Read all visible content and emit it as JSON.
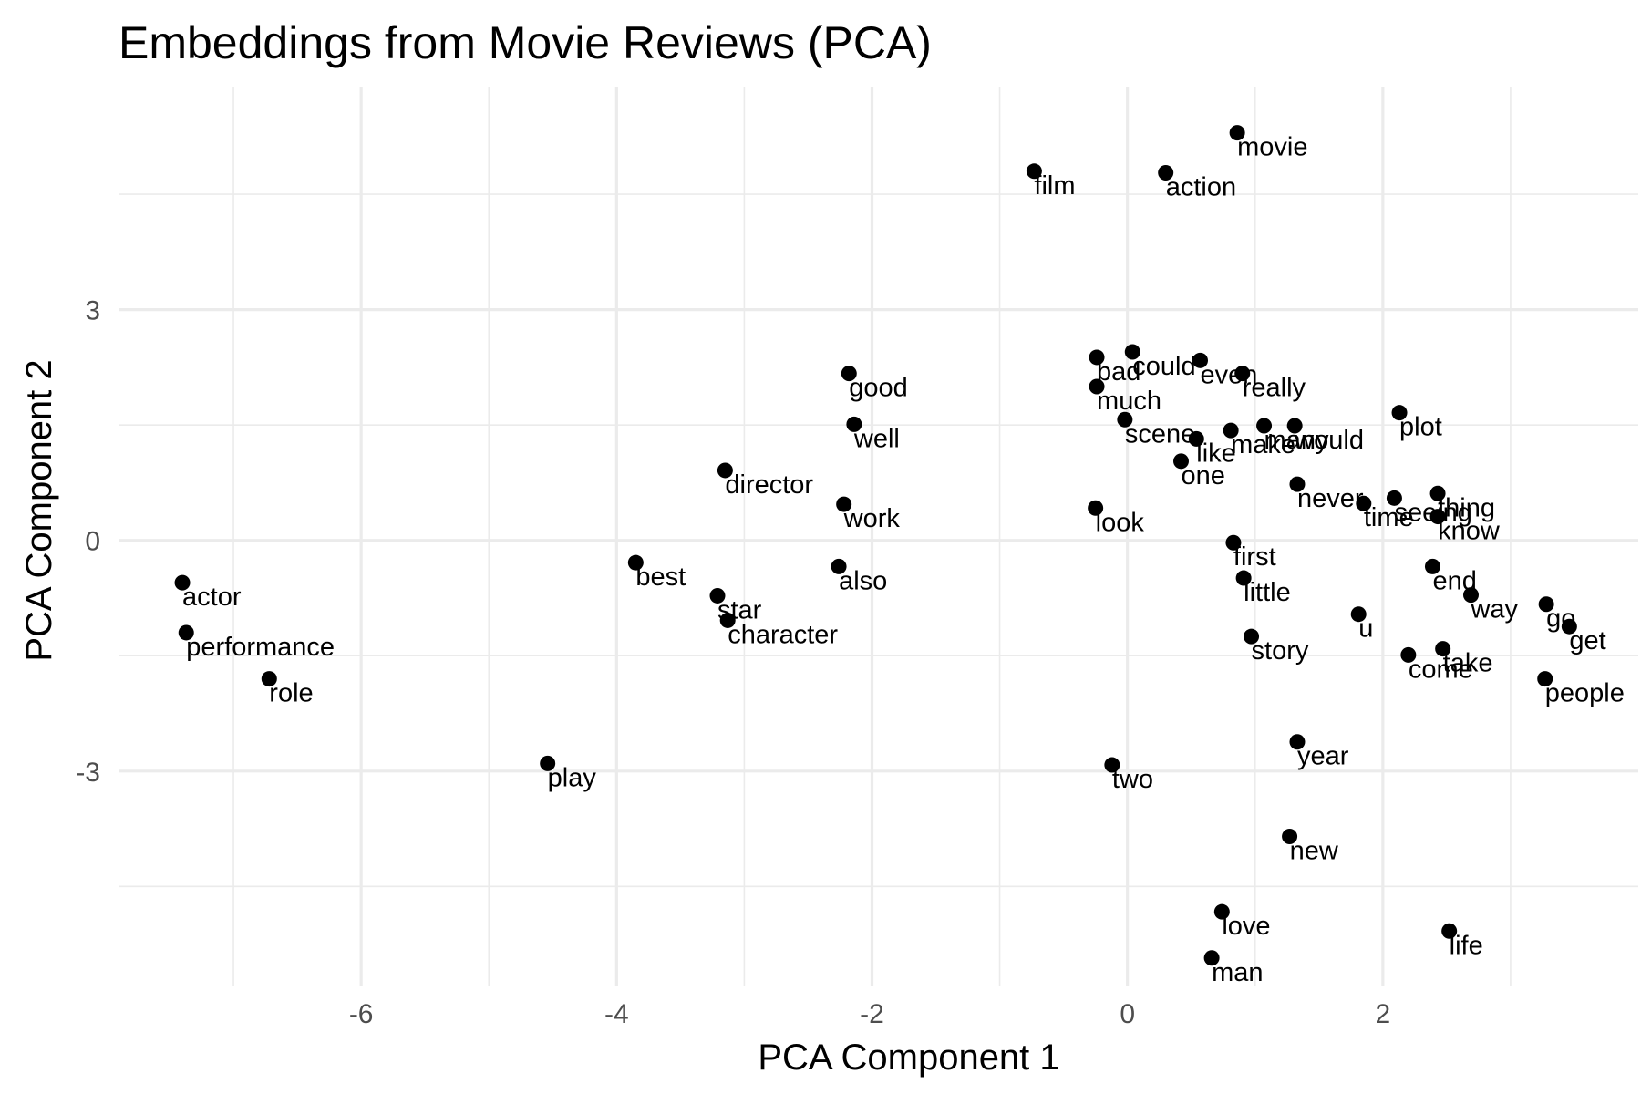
{
  "title": "Embeddings from Movie Reviews (PCA)",
  "chart_data": {
    "type": "scatter",
    "title": "Embeddings from Movie Reviews (PCA)",
    "xlabel": "PCA Component 1",
    "ylabel": "PCA Component 2",
    "xlim": [
      -7.9,
      4.0
    ],
    "ylim": [
      -5.8,
      5.9
    ],
    "xticks": [
      -6,
      -4,
      -2,
      0,
      2
    ],
    "yticks": [
      -3,
      0,
      3
    ],
    "grid": true,
    "legend": "none",
    "points": [
      {
        "label": "movie",
        "x": 0.86,
        "y": 5.3
      },
      {
        "label": "film",
        "x": -0.73,
        "y": 4.8
      },
      {
        "label": "action",
        "x": 0.3,
        "y": 4.78
      },
      {
        "label": "bad",
        "x": -0.24,
        "y": 2.38
      },
      {
        "label": "could",
        "x": 0.04,
        "y": 2.45
      },
      {
        "label": "even",
        "x": 0.57,
        "y": 2.34
      },
      {
        "label": "really",
        "x": 0.9,
        "y": 2.17
      },
      {
        "label": "good",
        "x": -2.18,
        "y": 2.17
      },
      {
        "label": "much",
        "x": -0.24,
        "y": 2.0
      },
      {
        "label": "plot",
        "x": 2.13,
        "y": 1.66
      },
      {
        "label": "scene",
        "x": -0.02,
        "y": 1.57
      },
      {
        "label": "well",
        "x": -2.14,
        "y": 1.51
      },
      {
        "label": "make",
        "x": 0.81,
        "y": 1.43
      },
      {
        "label": "many",
        "x": 1.07,
        "y": 1.49
      },
      {
        "label": "would",
        "x": 1.31,
        "y": 1.49
      },
      {
        "label": "like",
        "x": 0.54,
        "y": 1.32
      },
      {
        "label": "one",
        "x": 0.42,
        "y": 1.03
      },
      {
        "label": "director",
        "x": -3.15,
        "y": 0.91
      },
      {
        "label": "never",
        "x": 1.33,
        "y": 0.73
      },
      {
        "label": "seeing",
        "x": 2.09,
        "y": 0.55
      },
      {
        "label": "thing",
        "x": 2.43,
        "y": 0.61
      },
      {
        "label": "time",
        "x": 1.85,
        "y": 0.48
      },
      {
        "label": "work",
        "x": -2.22,
        "y": 0.47
      },
      {
        "label": "look",
        "x": -0.25,
        "y": 0.42
      },
      {
        "label": "know",
        "x": 2.43,
        "y": 0.31
      },
      {
        "label": "first",
        "x": 0.83,
        "y": -0.03
      },
      {
        "label": "best",
        "x": -3.85,
        "y": -0.29
      },
      {
        "label": "also",
        "x": -2.26,
        "y": -0.34
      },
      {
        "label": "end",
        "x": 2.39,
        "y": -0.34
      },
      {
        "label": "little",
        "x": 0.91,
        "y": -0.49
      },
      {
        "label": "actor",
        "x": -7.4,
        "y": -0.55
      },
      {
        "label": "star",
        "x": -3.21,
        "y": -0.72
      },
      {
        "label": "way",
        "x": 2.69,
        "y": -0.71
      },
      {
        "label": "go",
        "x": 3.28,
        "y": -0.83
      },
      {
        "label": "u",
        "x": 1.81,
        "y": -0.96
      },
      {
        "label": "character",
        "x": -3.13,
        "y": -1.04
      },
      {
        "label": "get",
        "x": 3.46,
        "y": -1.12
      },
      {
        "label": "performance",
        "x": -7.37,
        "y": -1.2
      },
      {
        "label": "story",
        "x": 0.97,
        "y": -1.25
      },
      {
        "label": "take",
        "x": 2.47,
        "y": -1.41
      },
      {
        "label": "come",
        "x": 2.2,
        "y": -1.49
      },
      {
        "label": "role",
        "x": -6.72,
        "y": -1.8
      },
      {
        "label": "people",
        "x": 3.27,
        "y": -1.8
      },
      {
        "label": "year",
        "x": 1.33,
        "y": -2.62
      },
      {
        "label": "play",
        "x": -4.54,
        "y": -2.9
      },
      {
        "label": "two",
        "x": -0.12,
        "y": -2.92
      },
      {
        "label": "new",
        "x": 1.27,
        "y": -3.85
      },
      {
        "label": "love",
        "x": 0.74,
        "y": -4.83
      },
      {
        "label": "life",
        "x": 2.52,
        "y": -5.08
      },
      {
        "label": "man",
        "x": 0.66,
        "y": -5.43
      }
    ]
  }
}
